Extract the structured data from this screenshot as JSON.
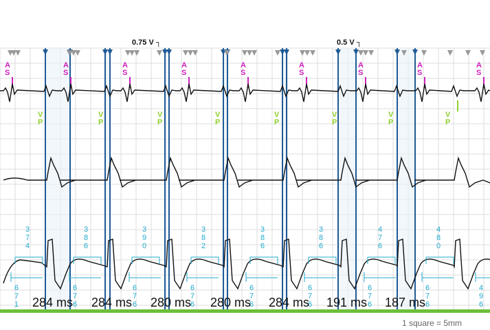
{
  "chart_data": {
    "type": "line",
    "title": "",
    "voltage_labels": [
      "0.75 V",
      "0.5 V"
    ],
    "atrial_marker": "AS",
    "ventricular_marker": "VP",
    "av_intervals_ms": [
      374,
      386,
      390,
      382,
      386,
      386,
      476,
      480
    ],
    "va_intervals_ms": [
      671,
      676,
      676,
      676,
      676,
      676,
      676,
      676,
      496
    ],
    "bottom_interval_labels": [
      "284 ms",
      "284 ms",
      "280 ms",
      "280 ms",
      "284 ms",
      "191 ms",
      "187 ms"
    ],
    "scale_note": "1 square = 5mm",
    "grid": true,
    "colors": {
      "atrial": "#cc22bb",
      "ventricular": "#8fd12f",
      "interval": "#22aacc",
      "cursor": "#1f5a96",
      "baseline": "#6cbf3a",
      "trace": "#111111",
      "grid": "#dddddd"
    }
  }
}
